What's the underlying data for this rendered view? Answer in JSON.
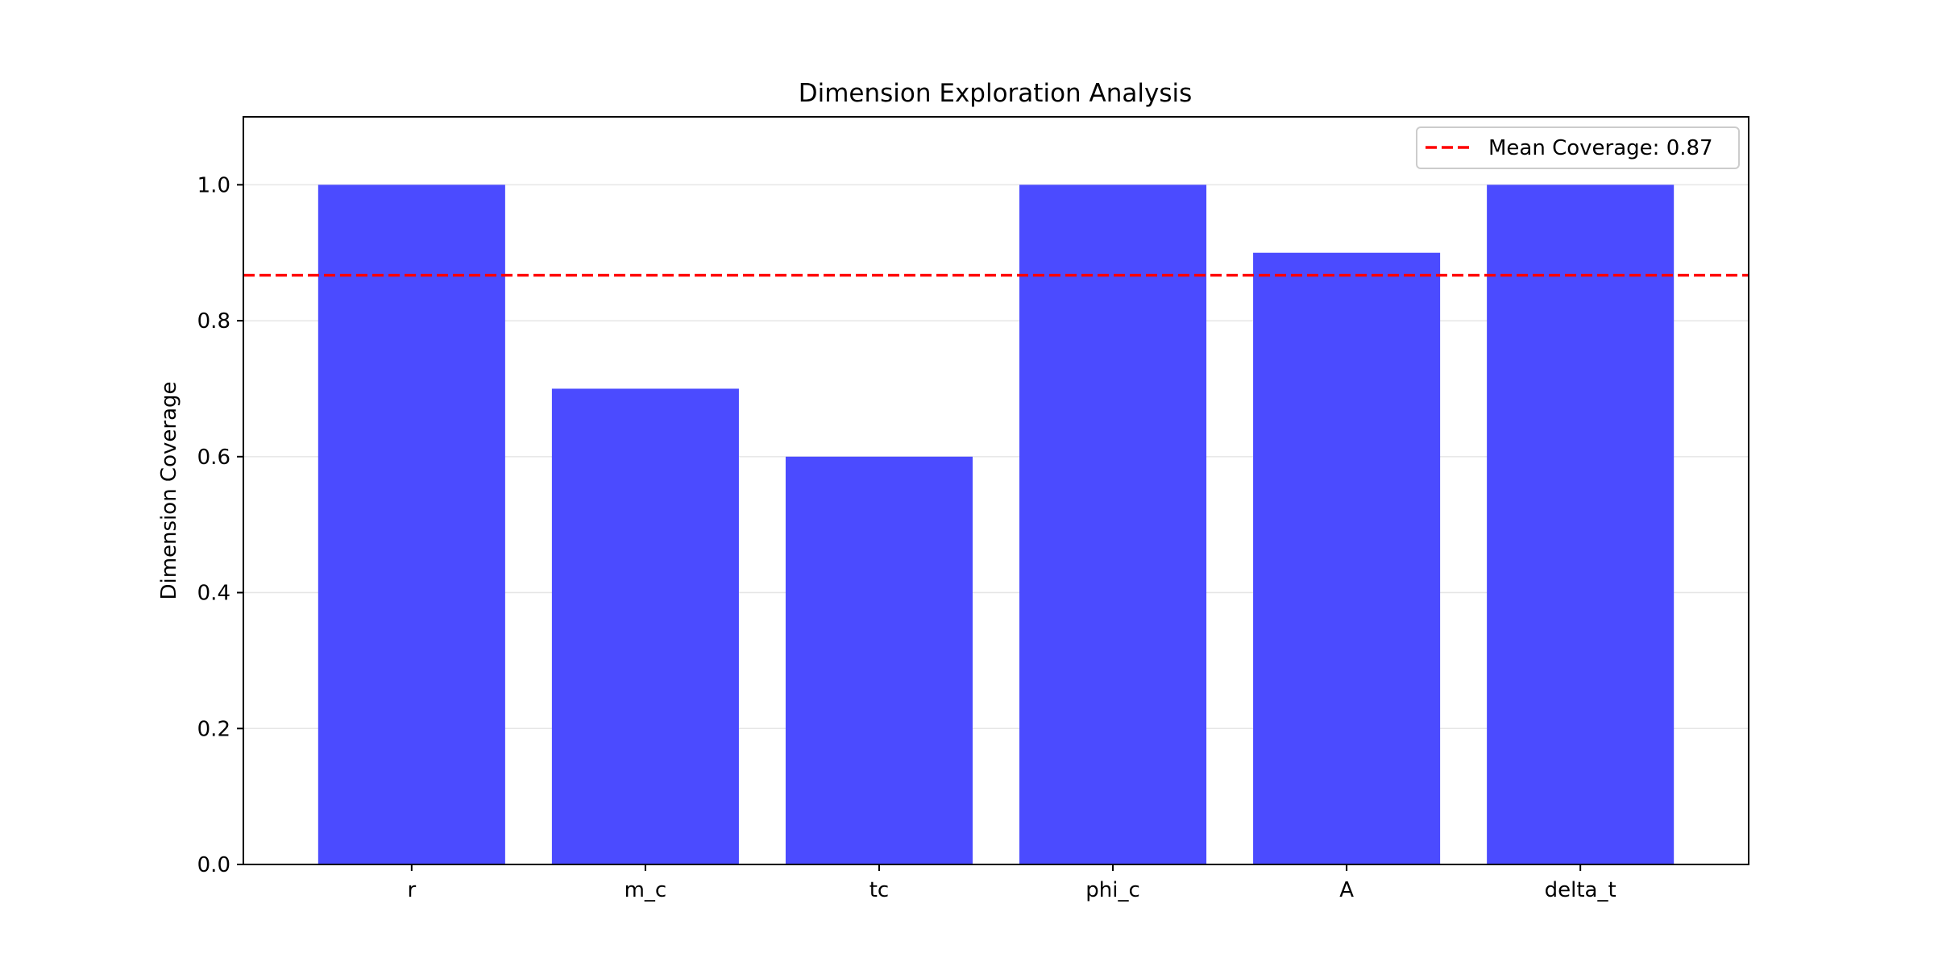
{
  "chart_data": {
    "type": "bar",
    "title": "Dimension Exploration Analysis",
    "xlabel": "",
    "ylabel": "Dimension Coverage",
    "categories": [
      "r",
      "m_c",
      "tc",
      "phi_c",
      "A",
      "delta_t"
    ],
    "values": [
      1.0,
      0.7,
      0.6,
      1.0,
      0.9,
      1.0
    ],
    "ylim": [
      0,
      1.1
    ],
    "yticks": [
      0.0,
      0.2,
      0.4,
      0.6,
      0.8,
      1.0
    ],
    "ytick_labels": [
      "0.0",
      "0.2",
      "0.4",
      "0.6",
      "0.8",
      "1.0"
    ],
    "grid": "horizontal",
    "bar_color": "#4b4bff",
    "reference_line": {
      "value": 0.867,
      "label": "Mean Coverage: 0.87",
      "color": "#ff0000",
      "style": "dashed"
    },
    "legend_position": "top-right"
  }
}
